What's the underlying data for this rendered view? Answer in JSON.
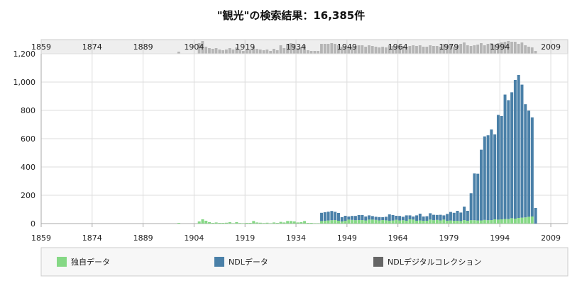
{
  "chart_data": {
    "type": "bar",
    "stacked": true,
    "title": "\"観光\"の検索結果：16,385件",
    "x_ticks": [
      "1859",
      "1874",
      "1889",
      "1904",
      "1919",
      "1934",
      "1949",
      "1964",
      "1979",
      "1994",
      "2009"
    ],
    "navigator_ticks": [
      "1859",
      "1874",
      "1889",
      "1904",
      "1919",
      "1934",
      "1949",
      "1964",
      "1979",
      "1994",
      "2009"
    ],
    "y_ticks": [
      "0",
      "200",
      "400",
      "600",
      "800",
      "1,000",
      "1,200"
    ],
    "ylim": [
      0,
      1200
    ],
    "xlim": [
      1859,
      2014
    ],
    "grid": true,
    "legend_position": "bottom",
    "colors": {
      "own": "#85d885",
      "ndl": "#4a80a8",
      "digital": "#666666",
      "navigator_bar": "#b5b5b5",
      "navigator_bg": "#eeeeee",
      "grid": "#dddddd",
      "axis": "#aaaaaa"
    },
    "series": [
      {
        "name": "独自データ",
        "key": "own",
        "start_year": 1859,
        "values": [
          0,
          0,
          0,
          0,
          0,
          0,
          0,
          0,
          0,
          0,
          0,
          0,
          0,
          0,
          0,
          0,
          0,
          0,
          0,
          0,
          0,
          0,
          0,
          0,
          0,
          0,
          0,
          0,
          0,
          0,
          0,
          0,
          0,
          0,
          0,
          0,
          0,
          0,
          0,
          0,
          5,
          0,
          0,
          0,
          0,
          0,
          15,
          30,
          20,
          10,
          5,
          8,
          5,
          5,
          6,
          10,
          3,
          10,
          4,
          3,
          5,
          5,
          18,
          8,
          6,
          4,
          6,
          3,
          8,
          5,
          12,
          8,
          18,
          18,
          15,
          8,
          10,
          18,
          5,
          5,
          3,
          3,
          18,
          20,
          22,
          24,
          25,
          20,
          15,
          20,
          28,
          26,
          24,
          25,
          25,
          22,
          28,
          28,
          26,
          22,
          25,
          23,
          20,
          22,
          27,
          22,
          24,
          20,
          30,
          28,
          20,
          22,
          20,
          20,
          28,
          24,
          26,
          22,
          28,
          20,
          22,
          20,
          20,
          18,
          25,
          20,
          24,
          24,
          22,
          22,
          26,
          24,
          25,
          30,
          28,
          30,
          32,
          32,
          38,
          35,
          40,
          42,
          44,
          48,
          50,
          0
        ]
      },
      {
        "name": "NDLデータ",
        "key": "ndl",
        "start_year": 1859,
        "values": [
          0,
          0,
          0,
          0,
          0,
          0,
          0,
          0,
          0,
          0,
          0,
          0,
          0,
          0,
          0,
          0,
          0,
          0,
          0,
          0,
          0,
          0,
          0,
          0,
          0,
          0,
          0,
          0,
          0,
          0,
          0,
          0,
          0,
          0,
          0,
          0,
          0,
          0,
          0,
          0,
          0,
          0,
          0,
          0,
          0,
          0,
          0,
          0,
          0,
          0,
          0,
          0,
          0,
          0,
          0,
          0,
          0,
          0,
          0,
          0,
          0,
          0,
          0,
          0,
          0,
          0,
          0,
          0,
          0,
          0,
          0,
          0,
          0,
          0,
          0,
          0,
          0,
          0,
          0,
          0,
          0,
          0,
          58,
          60,
          62,
          65,
          58,
          55,
          30,
          35,
          22,
          28,
          30,
          35,
          35,
          28,
          30,
          25,
          22,
          24,
          20,
          25,
          45,
          38,
          28,
          32,
          24,
          38,
          28,
          22,
          38,
          48,
          30,
          32,
          45,
          38,
          35,
          40,
          30,
          48,
          60,
          56,
          70,
          60,
          95,
          70,
          190,
          330,
          330,
          500,
          590,
          600,
          640,
          600,
          740,
          730,
          880,
          840,
          890,
          980,
          1010,
          940,
          800,
          750,
          700,
          110
        ]
      },
      {
        "name": "NDLデジタルコレクション",
        "key": "digital",
        "start_year": 1859,
        "values": []
      }
    ],
    "navigator_series": {
      "start_year": 1859,
      "values": [
        0,
        0,
        0,
        0,
        0,
        0,
        0,
        0,
        0,
        0,
        0,
        0,
        0,
        0,
        0,
        0,
        0,
        0,
        0,
        0,
        0,
        0,
        0,
        0,
        0,
        0,
        0,
        0,
        0,
        0,
        0,
        0,
        0,
        0,
        0,
        0,
        0,
        0,
        0,
        0,
        3,
        0,
        0,
        0,
        0,
        0,
        15,
        18,
        10,
        8,
        7,
        8,
        6,
        5,
        6,
        8,
        6,
        9,
        6,
        4,
        6,
        6,
        10,
        7,
        6,
        5,
        6,
        4,
        7,
        5,
        12,
        8,
        14,
        15,
        13,
        8,
        9,
        12,
        5,
        4,
        4,
        4,
        14,
        14,
        14,
        15,
        14,
        12,
        10,
        11,
        10,
        10,
        11,
        12,
        12,
        10,
        12,
        11,
        10,
        9,
        10,
        9,
        12,
        11,
        11,
        10,
        11,
        10,
        11,
        12,
        11,
        12,
        10,
        10,
        12,
        11,
        11,
        10,
        14,
        12,
        14,
        10,
        12,
        14,
        16,
        12,
        11,
        12,
        13,
        15,
        12,
        14,
        15,
        13,
        15,
        16,
        17,
        18,
        17,
        17,
        14,
        16,
        12,
        10,
        9,
        4
      ]
    },
    "legend": [
      "独自データ",
      "NDLデータ",
      "NDLデジタルコレクション"
    ]
  }
}
